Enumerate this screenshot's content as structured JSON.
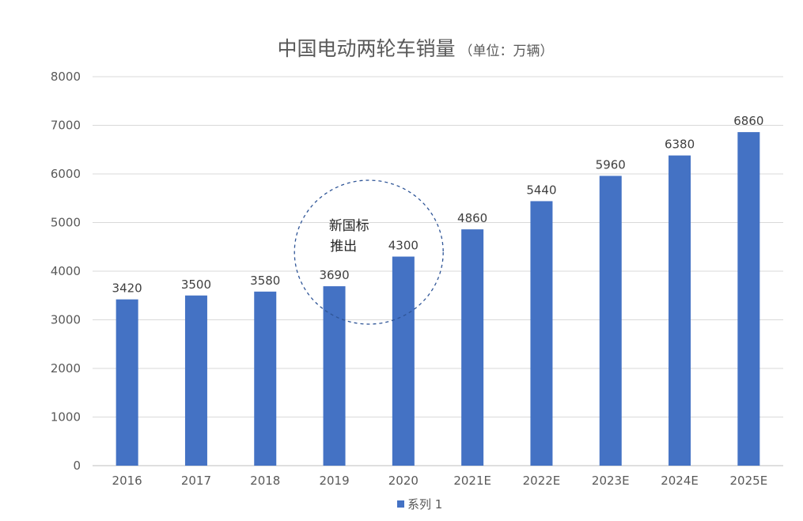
{
  "chart_data": {
    "type": "bar",
    "title": "中国电动两轮车销量",
    "title_suffix": "（单位：万辆）",
    "categories": [
      "2016",
      "2017",
      "2018",
      "2019",
      "2020",
      "2021E",
      "2022E",
      "2023E",
      "2024E",
      "2025E"
    ],
    "series": [
      {
        "name": "系列 1",
        "values": [
          3420,
          3500,
          3580,
          3690,
          4300,
          4860,
          5440,
          5960,
          6380,
          6860
        ]
      }
    ],
    "ylim": [
      0,
      8000
    ],
    "yticks": [
      0,
      1000,
      2000,
      3000,
      4000,
      5000,
      6000,
      7000,
      8000
    ],
    "xlabel": "",
    "ylabel": "",
    "grid": true,
    "legend": "bottom-center",
    "bar_color": "#4472C4",
    "annotation": {
      "lines": [
        "新国标",
        "推出"
      ],
      "highlight_categories": [
        "2019",
        "2020"
      ]
    }
  }
}
